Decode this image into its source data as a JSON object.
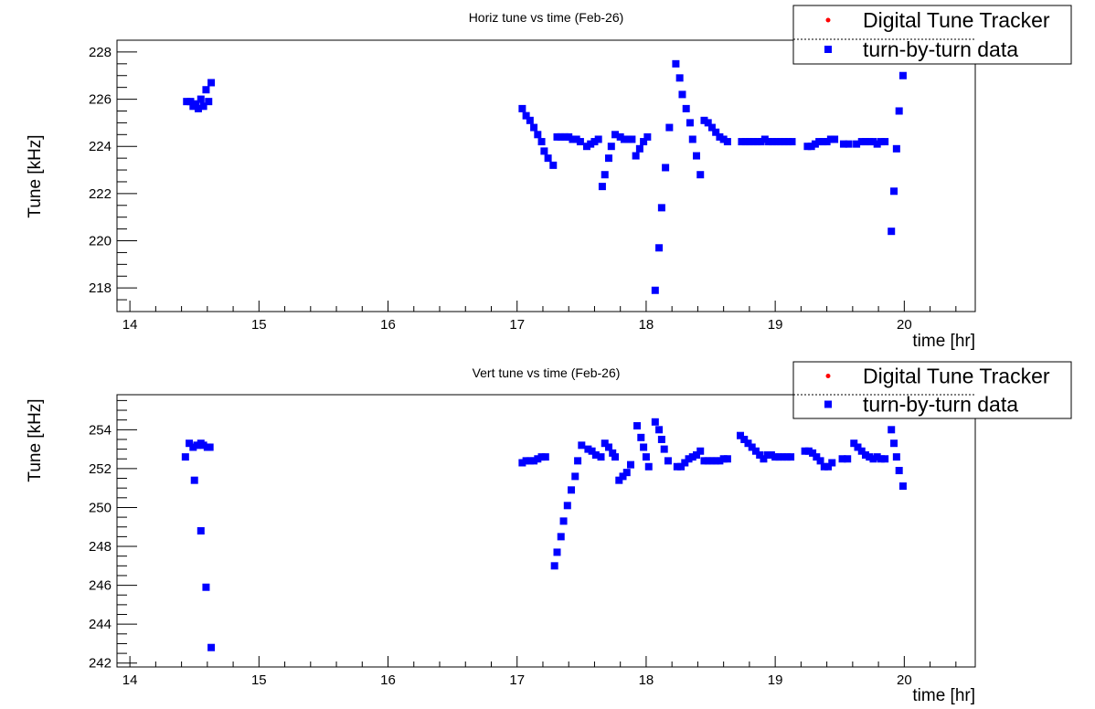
{
  "chart_data": [
    {
      "type": "scatter",
      "title": "Horiz tune vs time (Feb-26)",
      "xlabel": "time [hr]",
      "ylabel": "Tune [kHz]",
      "xlim": [
        13.9,
        20.55
      ],
      "ylim": [
        217.0,
        228.5
      ],
      "xticks": [
        14,
        15,
        16,
        17,
        18,
        19,
        20
      ],
      "yticks": [
        218,
        220,
        222,
        224,
        226,
        228
      ],
      "legend_position": "top-right",
      "legend": [
        "Digital Tune Tracker",
        "turn-by-turn data"
      ],
      "series": [
        {
          "name": "Digital Tune Tracker",
          "color": "#ff0000",
          "marker": "star",
          "x": [],
          "y": []
        },
        {
          "name": "turn-by-turn data",
          "color": "#0000ff",
          "marker": "square",
          "x": [
            14.44,
            14.47,
            14.49,
            14.51,
            14.53,
            14.55,
            14.57,
            14.59,
            14.61,
            14.63,
            17.04,
            17.07,
            17.1,
            17.13,
            17.16,
            17.19,
            17.21,
            17.24,
            17.28,
            17.31,
            17.34,
            17.37,
            17.4,
            17.43,
            17.46,
            17.49,
            17.54,
            17.57,
            17.6,
            17.63,
            17.66,
            17.68,
            17.71,
            17.73,
            17.76,
            17.8,
            17.83,
            17.86,
            17.89,
            17.92,
            17.95,
            17.98,
            18.01,
            18.07,
            18.1,
            18.12,
            18.15,
            18.18,
            18.23,
            18.26,
            18.28,
            18.31,
            18.34,
            18.36,
            18.39,
            18.42,
            18.45,
            18.48,
            18.51,
            18.54,
            18.57,
            18.6,
            18.63,
            18.74,
            18.77,
            18.8,
            18.83,
            18.86,
            18.89,
            18.92,
            18.95,
            18.98,
            19.01,
            19.04,
            19.07,
            19.1,
            19.13,
            19.25,
            19.28,
            19.31,
            19.34,
            19.37,
            19.4,
            19.43,
            19.46,
            19.53,
            19.57,
            19.63,
            19.67,
            19.7,
            19.73,
            19.76,
            19.79,
            19.82,
            19.85,
            19.9,
            19.92,
            19.94,
            19.96,
            19.99
          ],
          "y": [
            225.9,
            225.9,
            225.7,
            225.8,
            225.6,
            226.0,
            225.7,
            226.4,
            225.9,
            226.7,
            225.6,
            225.3,
            225.1,
            224.8,
            224.5,
            224.2,
            223.8,
            223.5,
            223.2,
            224.4,
            224.4,
            224.4,
            224.4,
            224.3,
            224.3,
            224.2,
            224.0,
            224.1,
            224.2,
            224.3,
            222.3,
            222.8,
            223.5,
            224.0,
            224.5,
            224.4,
            224.3,
            224.3,
            224.3,
            223.6,
            223.9,
            224.2,
            224.4,
            217.9,
            219.7,
            221.4,
            223.1,
            224.8,
            227.5,
            226.9,
            226.2,
            225.6,
            225.0,
            224.3,
            223.6,
            222.8,
            225.1,
            225.0,
            224.8,
            224.6,
            224.4,
            224.3,
            224.2,
            224.2,
            224.2,
            224.2,
            224.2,
            224.2,
            224.2,
            224.3,
            224.2,
            224.2,
            224.2,
            224.2,
            224.2,
            224.2,
            224.2,
            224.0,
            224.0,
            224.1,
            224.2,
            224.2,
            224.2,
            224.3,
            224.3,
            224.1,
            224.1,
            224.1,
            224.2,
            224.2,
            224.2,
            224.2,
            224.1,
            224.2,
            224.2,
            220.4,
            222.1,
            223.9,
            225.5,
            227.0
          ]
        }
      ]
    },
    {
      "type": "scatter",
      "title": "Vert tune vs time (Feb-26)",
      "xlabel": "time [hr]",
      "ylabel": "Tune [kHz]",
      "xlim": [
        13.9,
        20.55
      ],
      "ylim": [
        241.8,
        255.8
      ],
      "xticks": [
        14,
        15,
        16,
        17,
        18,
        19,
        20
      ],
      "yticks": [
        242,
        244,
        246,
        248,
        250,
        252,
        254
      ],
      "legend_position": "top-right",
      "legend": [
        "Digital Tune Tracker",
        "turn-by-turn data"
      ],
      "series": [
        {
          "name": "Digital Tune Tracker",
          "color": "#ff0000",
          "marker": "star",
          "x": [],
          "y": []
        },
        {
          "name": "turn-by-turn data",
          "color": "#0000ff",
          "marker": "square",
          "x": [
            14.43,
            14.46,
            14.49,
            14.52,
            14.55,
            14.57,
            14.6,
            14.62,
            14.5,
            14.55,
            14.59,
            14.63,
            17.04,
            17.07,
            17.1,
            17.13,
            17.16,
            17.19,
            17.22,
            17.29,
            17.31,
            17.34,
            17.36,
            17.39,
            17.42,
            17.45,
            17.47,
            17.5,
            17.55,
            17.58,
            17.61,
            17.65,
            17.68,
            17.71,
            17.74,
            17.76,
            17.79,
            17.82,
            17.85,
            17.88,
            17.93,
            17.96,
            17.98,
            18.0,
            18.02,
            18.07,
            18.1,
            18.12,
            18.14,
            18.17,
            18.24,
            18.27,
            18.3,
            18.33,
            18.36,
            18.39,
            18.42,
            18.45,
            18.48,
            18.51,
            18.54,
            18.57,
            18.6,
            18.63,
            18.73,
            18.76,
            18.79,
            18.82,
            18.85,
            18.88,
            18.91,
            18.94,
            18.97,
            19.0,
            19.03,
            19.06,
            19.09,
            19.12,
            19.23,
            19.26,
            19.29,
            19.32,
            19.35,
            19.38,
            19.41,
            19.44,
            19.52,
            19.56,
            19.61,
            19.64,
            19.67,
            19.7,
            19.73,
            19.76,
            19.79,
            19.82,
            19.85,
            19.9,
            19.92,
            19.94,
            19.96,
            19.99
          ],
          "y": [
            252.6,
            253.3,
            253.1,
            253.2,
            253.3,
            253.2,
            253.1,
            253.1,
            251.4,
            248.8,
            245.9,
            242.8,
            252.3,
            252.4,
            252.4,
            252.4,
            252.5,
            252.6,
            252.6,
            247.0,
            247.7,
            248.5,
            249.3,
            250.1,
            250.9,
            251.6,
            252.4,
            253.2,
            253.0,
            252.9,
            252.7,
            252.6,
            253.3,
            253.1,
            252.8,
            252.6,
            251.4,
            251.6,
            251.8,
            252.2,
            254.2,
            253.6,
            253.1,
            252.6,
            252.1,
            254.4,
            254.0,
            253.5,
            253.0,
            252.4,
            252.1,
            252.1,
            252.3,
            252.5,
            252.6,
            252.7,
            252.9,
            252.4,
            252.4,
            252.4,
            252.4,
            252.4,
            252.5,
            252.5,
            253.7,
            253.5,
            253.3,
            253.1,
            252.9,
            252.7,
            252.5,
            252.7,
            252.7,
            252.6,
            252.6,
            252.6,
            252.6,
            252.6,
            252.9,
            252.9,
            252.8,
            252.6,
            252.4,
            252.1,
            252.1,
            252.3,
            252.5,
            252.5,
            253.3,
            253.1,
            252.9,
            252.7,
            252.6,
            252.5,
            252.6,
            252.5,
            252.5,
            254.0,
            253.3,
            252.6,
            251.9,
            251.1
          ]
        }
      ]
    }
  ]
}
